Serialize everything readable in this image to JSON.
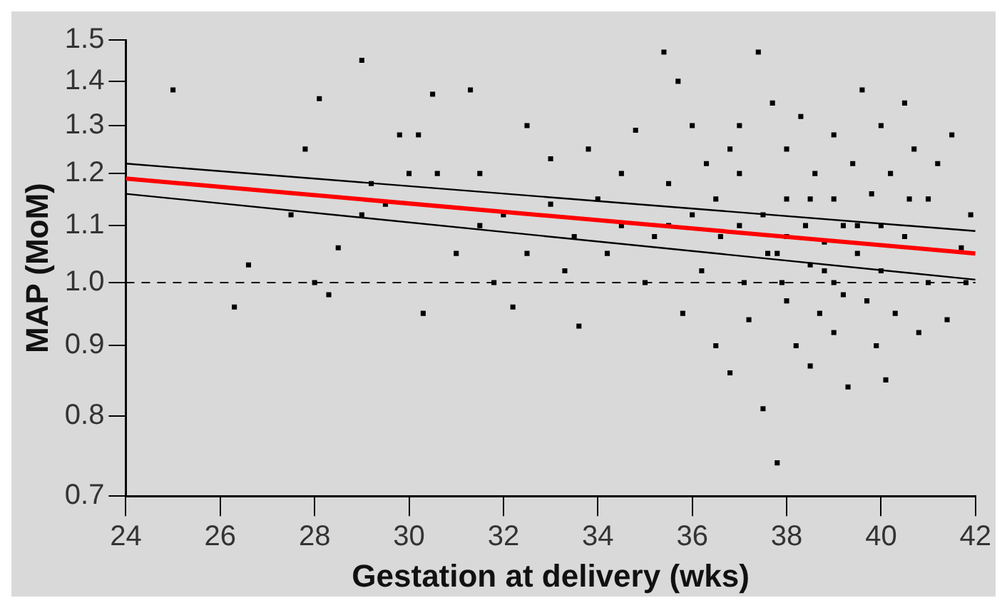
{
  "chart_data": {
    "type": "scatter",
    "xlabel": "Gestation at delivery (wks)",
    "ylabel": "MAP (MoM)",
    "log": "y",
    "grid": false,
    "legend": false,
    "xlim": [
      24,
      42
    ],
    "xticks": [
      24,
      26,
      28,
      30,
      32,
      34,
      36,
      38,
      40,
      42
    ],
    "ylim": [
      0.7,
      1.5
    ],
    "yticks": [
      0.7,
      0.8,
      0.9,
      {
        "value": 1,
        "label": "1.0"
      },
      1.1,
      1.2,
      1.3,
      1.4,
      1.5
    ],
    "ref_lines": [
      {
        "axis": "y",
        "value": 1,
        "color": "#000000",
        "line_style": "dashed"
      }
    ],
    "series": [
      {
        "color": "#000000",
        "marker": "square",
        "x": [
          25,
          26.3,
          26.6,
          27.8,
          28.1,
          28,
          28.3,
          29,
          29.2,
          29.5,
          29.8,
          30.2,
          30.3,
          30.5,
          30.6,
          31,
          31.3,
          31.5,
          31.8,
          32,
          32.2,
          32.5,
          32.5,
          33,
          33,
          33.3,
          33.6,
          33.8,
          34,
          34.2,
          34.5,
          34.8,
          35,
          35.2,
          35.4,
          35.5,
          35.7,
          35.8,
          36,
          36,
          36.2,
          36.3,
          36.5,
          36.6,
          36.8,
          37,
          37,
          37.1,
          37.2,
          37.4,
          37.5,
          37.5,
          37.6,
          37.7,
          37.8,
          37.9,
          38,
          38,
          38,
          38,
          38.2,
          38.3,
          38.4,
          38.5,
          38.5,
          38.6,
          38.7,
          38.8,
          39,
          39,
          39,
          39,
          39.2,
          39.3,
          39.4,
          39.5,
          39.6,
          39.7,
          39.8,
          39.9,
          40,
          40,
          40,
          40.1,
          40.2,
          40.3,
          40.5,
          40.5,
          40.7,
          40.8,
          41,
          41,
          41.2,
          41.4,
          41.5,
          41.7,
          41.9,
          41.8,
          37,
          38.5,
          39.5,
          36.5,
          34.5,
          33.5,
          31.5,
          30,
          29,
          28.5,
          27.5,
          37.8,
          38.8,
          39.2,
          40.6,
          36.8,
          35.5
        ],
        "values": [
          1.38,
          0.96,
          1.03,
          1.25,
          1.36,
          1.0,
          0.98,
          1.45,
          1.18,
          1.14,
          1.28,
          1.28,
          0.95,
          1.37,
          1.2,
          1.05,
          1.38,
          1.2,
          1.0,
          1.12,
          0.96,
          1.3,
          1.05,
          1.14,
          1.23,
          1.02,
          0.93,
          1.25,
          1.15,
          1.05,
          1.2,
          1.29,
          1.0,
          1.08,
          1.47,
          1.18,
          1.4,
          0.95,
          1.3,
          1.12,
          1.02,
          1.22,
          0.9,
          1.08,
          0.86,
          1.3,
          1.2,
          1.0,
          0.94,
          1.47,
          1.12,
          0.81,
          1.05,
          1.35,
          0.74,
          1.0,
          1.25,
          1.15,
          1.08,
          0.97,
          0.9,
          1.32,
          1.1,
          1.03,
          0.87,
          1.2,
          0.95,
          1.07,
          1.28,
          1.15,
          1.0,
          0.92,
          1.1,
          0.84,
          1.22,
          1.05,
          1.38,
          0.97,
          1.16,
          0.9,
          1.3,
          1.1,
          1.02,
          0.85,
          1.2,
          0.95,
          1.35,
          1.08,
          1.25,
          0.92,
          1.15,
          1.0,
          1.22,
          0.94,
          1.28,
          1.06,
          1.12,
          1.0,
          1.1,
          1.15,
          1.1,
          1.15,
          1.1,
          1.08,
          1.1,
          1.2,
          1.12,
          1.06,
          1.12,
          1.05,
          1.02,
          0.98,
          1.15,
          1.25,
          1.1
        ]
      },
      {
        "type": "line",
        "color": "#000000",
        "marker": "none",
        "x": [
          24,
          42
        ],
        "values": [
          1.22,
          1.09
        ]
      },
      {
        "type": "line",
        "color": "#000000",
        "marker": "none",
        "x": [
          24,
          42
        ],
        "values": [
          1.16,
          1.005
        ]
      },
      {
        "type": "line",
        "color": "#ff0000",
        "marker": "none",
        "x": [
          24,
          42
        ],
        "values": [
          1.19,
          1.05
        ]
      }
    ]
  }
}
